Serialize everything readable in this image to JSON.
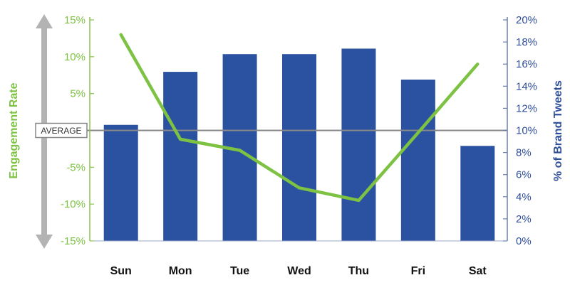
{
  "chart_data": {
    "type": "bar",
    "categories": [
      "Sun",
      "Mon",
      "Tue",
      "Wed",
      "Thu",
      "Fri",
      "Sat"
    ],
    "series": [
      {
        "kind": "bar",
        "axis": "right",
        "values": [
          10.5,
          15.3,
          16.9,
          16.9,
          17.4,
          14.6,
          8.6
        ]
      },
      {
        "kind": "line",
        "axis": "left",
        "values": [
          13.0,
          -1.2,
          -2.7,
          -7.8,
          -9.5,
          -0.3,
          9.0
        ]
      }
    ],
    "y_left": {
      "label": "Engagement Rate",
      "min": -15,
      "max": 15,
      "step": 5,
      "ticks": [
        "-15%",
        "-10%",
        "-5%",
        "5%",
        "10%",
        "15%"
      ],
      "tick_values": [
        -15,
        -10,
        -5,
        5,
        10,
        15
      ]
    },
    "y_right": {
      "label": "% of Brand Tweets",
      "min": 0,
      "max": 20,
      "step": 2,
      "ticks": [
        "0%",
        "2%",
        "4%",
        "6%",
        "8%",
        "10%",
        "12%",
        "14%",
        "16%",
        "18%",
        "20%"
      ],
      "tick_values": [
        0,
        2,
        4,
        6,
        8,
        10,
        12,
        14,
        16,
        18,
        20
      ]
    },
    "average_line": {
      "label": "AVERAGE",
      "value": 0
    },
    "colors": {
      "bar": "#2a52a0",
      "line": "#7dc242",
      "left_axis": "#7dc242",
      "right_axis": "#2f4f9a",
      "average": "#888888"
    },
    "grid": false
  }
}
